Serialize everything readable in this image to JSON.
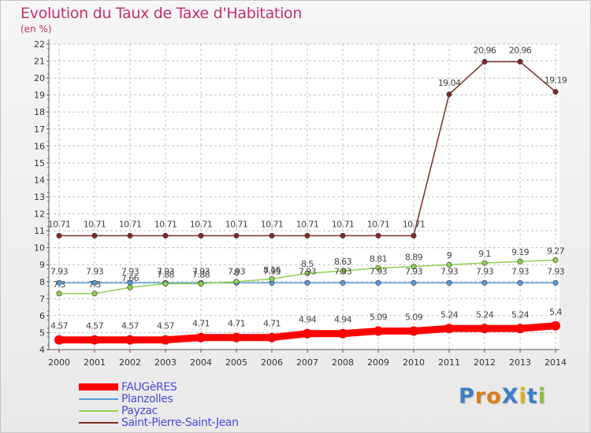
{
  "title": "Evolution du Taux de Taxe d'Habitation",
  "subtitle": "(en %)",
  "logo": "ProXiti",
  "chart_data": {
    "type": "line",
    "title": "Evolution du Taux de Taxe d'Habitation",
    "ylabel": "(en %)",
    "xlabel": "",
    "x": [
      2000,
      2001,
      2002,
      2003,
      2004,
      2005,
      2006,
      2007,
      2008,
      2009,
      2010,
      2011,
      2012,
      2013,
      2014
    ],
    "ylim": [
      4,
      22
    ],
    "yticks": [
      4,
      5,
      6,
      7,
      8,
      9,
      10,
      11,
      12,
      13,
      14,
      15,
      16,
      17,
      18,
      19,
      20,
      21,
      22
    ],
    "grid": true,
    "legend": "bottom-left",
    "series": [
      {
        "name": "FAUGèRES",
        "color": "#ff0000",
        "values": [
          4.57,
          4.57,
          4.57,
          4.57,
          4.71,
          4.71,
          4.71,
          4.94,
          4.94,
          5.09,
          5.09,
          5.24,
          5.24,
          5.24,
          5.4
        ],
        "labels": [
          "4.57",
          "4.57",
          "4.57",
          "4.57",
          "4.71",
          "4.71",
          "4.71",
          "4.94",
          "4.94",
          "5.09",
          "5.09",
          "5.24",
          "5.24",
          "5.24",
          "5.4"
        ]
      },
      {
        "name": "Planzolles",
        "color": "#5b9bd5",
        "values": [
          7.93,
          7.93,
          7.93,
          7.93,
          7.93,
          7.93,
          7.93,
          7.93,
          7.93,
          7.93,
          7.93,
          7.93,
          7.93,
          7.93,
          7.93
        ],
        "labels": [
          "7.93",
          "7.93",
          "7.93",
          "7.93",
          "7.93",
          "7.93",
          "7.93",
          "7.93",
          "7.93",
          "7.93",
          "7.93",
          "7.93",
          "7.93",
          "7.93",
          "7.93"
        ]
      },
      {
        "name": "Payzac",
        "color": "#8fd14f",
        "values": [
          7.3,
          7.3,
          7.66,
          7.88,
          7.88,
          8,
          8.16,
          8.5,
          8.63,
          8.81,
          8.89,
          9,
          9.1,
          9.19,
          9.27
        ],
        "labels": [
          "7.3",
          "7.3",
          "7.66",
          "7.88",
          "7.88",
          "8",
          "8.16",
          "8.5",
          "8.63",
          "8.81",
          "8.89",
          "9",
          "9.1",
          "9.19",
          "9.27"
        ]
      },
      {
        "name": "Saint-Pierre-Saint-Jean",
        "color": "#7b2d26",
        "values": [
          10.71,
          10.71,
          10.71,
          10.71,
          10.71,
          10.71,
          10.71,
          10.71,
          10.71,
          10.71,
          10.71,
          19.04,
          20.96,
          20.96,
          19.19
        ],
        "labels": [
          "10.71",
          "10.71",
          "10.71",
          "10.71",
          "10.71",
          "10.71",
          "10.71",
          "10.71",
          "10.71",
          "10.71",
          "10.71",
          "19.04",
          "20.96",
          "20.96",
          "19.19"
        ]
      }
    ]
  },
  "colors": {
    "title": "#c2306b",
    "legend_text": "#4b4bd8",
    "grid": "#c0c0c0"
  }
}
